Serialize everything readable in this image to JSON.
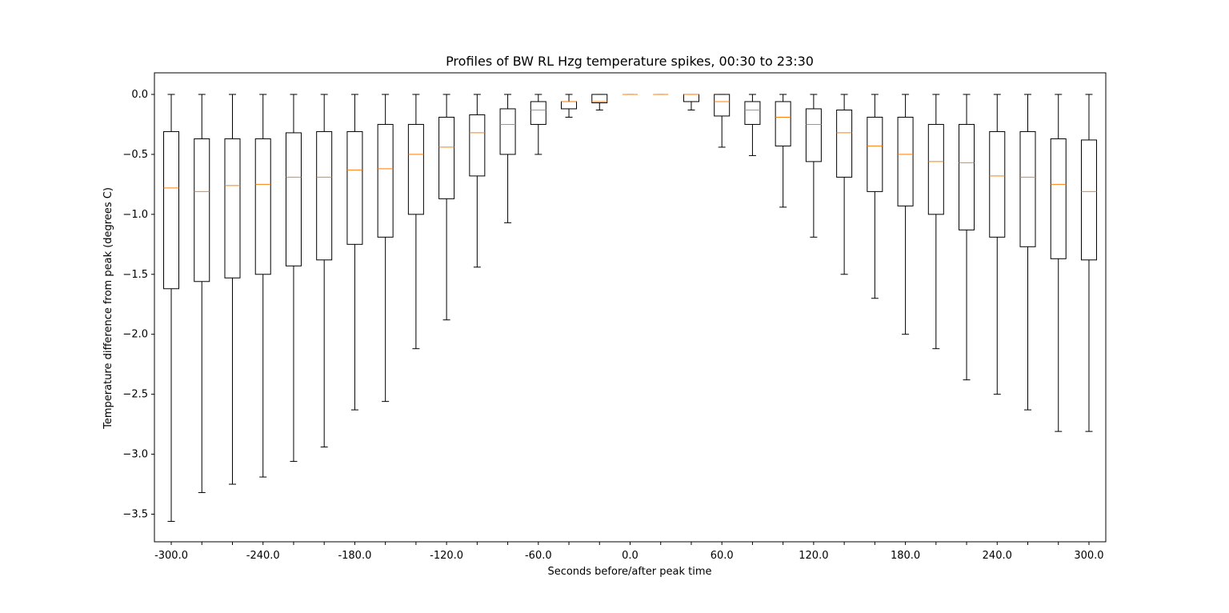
{
  "chart_data": {
    "type": "boxplot",
    "title": "Profiles of BW RL Hzg temperature spikes, 00:30 to 23:30",
    "xlabel": "Seconds before/after peak time",
    "ylabel": "Temperature difference from peak (degrees C)",
    "ylim": [
      -3.73,
      0.18
    ],
    "yticks": [
      0.0,
      -0.5,
      -1.0,
      -1.5,
      -2.0,
      -2.5,
      -3.0,
      -3.5
    ],
    "ytick_labels": [
      "0.0",
      "−0.5",
      "−1.0",
      "−1.5",
      "−2.0",
      "−2.5",
      "−3.0",
      "−3.5"
    ],
    "xtick_labels": [
      "-300.0",
      "-240.0",
      "-180.0",
      "-120.0",
      "-60.0",
      "0.0",
      "60.0",
      "120.0",
      "180.0",
      "240.0",
      "300.0"
    ],
    "x": [
      -300,
      -280,
      -260,
      -240,
      -220,
      -200,
      -180,
      -160,
      -140,
      -120,
      -100,
      -80,
      -60,
      -40,
      -20,
      0,
      20,
      40,
      60,
      80,
      100,
      120,
      140,
      160,
      180,
      200,
      220,
      240,
      260,
      280,
      300
    ],
    "boxes": [
      {
        "whislo": -3.56,
        "q1": -1.62,
        "med": -0.78,
        "q3": -0.31,
        "whishi": 0.0
      },
      {
        "whislo": -3.32,
        "q1": -1.56,
        "med": -0.81,
        "q3": -0.37,
        "whishi": 0.0
      },
      {
        "whislo": -3.25,
        "q1": -1.53,
        "med": -0.76,
        "q3": -0.37,
        "whishi": 0.0
      },
      {
        "whislo": -3.19,
        "q1": -1.5,
        "med": -0.75,
        "q3": -0.37,
        "whishi": 0.0
      },
      {
        "whislo": -3.06,
        "q1": -1.43,
        "med": -0.69,
        "q3": -0.32,
        "whishi": 0.0
      },
      {
        "whislo": -2.94,
        "q1": -1.38,
        "med": -0.69,
        "q3": -0.31,
        "whishi": 0.0
      },
      {
        "whislo": -2.63,
        "q1": -1.25,
        "med": -0.63,
        "q3": -0.31,
        "whishi": 0.0
      },
      {
        "whislo": -2.56,
        "q1": -1.19,
        "med": -0.62,
        "q3": -0.25,
        "whishi": 0.0
      },
      {
        "whislo": -2.12,
        "q1": -1.0,
        "med": -0.5,
        "q3": -0.25,
        "whishi": 0.0
      },
      {
        "whislo": -1.88,
        "q1": -0.87,
        "med": -0.44,
        "q3": -0.19,
        "whishi": 0.0
      },
      {
        "whislo": -1.44,
        "q1": -0.68,
        "med": -0.32,
        "q3": -0.17,
        "whishi": 0.0
      },
      {
        "whislo": -1.07,
        "q1": -0.5,
        "med": -0.25,
        "q3": -0.12,
        "whishi": 0.0
      },
      {
        "whislo": -0.5,
        "q1": -0.25,
        "med": -0.13,
        "q3": -0.06,
        "whishi": 0.0
      },
      {
        "whislo": -0.19,
        "q1": -0.12,
        "med": -0.06,
        "q3": -0.06,
        "whishi": 0.0
      },
      {
        "whislo": -0.13,
        "q1": -0.07,
        "med": -0.06,
        "q3": 0.0,
        "whishi": 0.0
      },
      {
        "whislo": 0.0,
        "q1": 0.0,
        "med": 0.0,
        "q3": 0.0,
        "whishi": 0.0
      },
      {
        "whislo": 0.0,
        "q1": 0.0,
        "med": 0.0,
        "q3": 0.0,
        "whishi": 0.0
      },
      {
        "whislo": -0.13,
        "q1": -0.06,
        "med": 0.0,
        "q3": 0.0,
        "whishi": 0.0
      },
      {
        "whislo": -0.44,
        "q1": -0.18,
        "med": -0.06,
        "q3": 0.0,
        "whishi": 0.0
      },
      {
        "whislo": -0.51,
        "q1": -0.25,
        "med": -0.13,
        "q3": -0.06,
        "whishi": 0.0
      },
      {
        "whislo": -0.94,
        "q1": -0.43,
        "med": -0.19,
        "q3": -0.06,
        "whishi": 0.0
      },
      {
        "whislo": -1.19,
        "q1": -0.56,
        "med": -0.25,
        "q3": -0.12,
        "whishi": 0.0
      },
      {
        "whislo": -1.5,
        "q1": -0.69,
        "med": -0.32,
        "q3": -0.13,
        "whishi": 0.0
      },
      {
        "whislo": -1.7,
        "q1": -0.81,
        "med": -0.43,
        "q3": -0.19,
        "whishi": 0.0
      },
      {
        "whislo": -2.0,
        "q1": -0.93,
        "med": -0.5,
        "q3": -0.19,
        "whishi": 0.0
      },
      {
        "whislo": -2.12,
        "q1": -1.0,
        "med": -0.56,
        "q3": -0.25,
        "whishi": 0.0
      },
      {
        "whislo": -2.38,
        "q1": -1.13,
        "med": -0.57,
        "q3": -0.25,
        "whishi": 0.0
      },
      {
        "whislo": -2.5,
        "q1": -1.19,
        "med": -0.68,
        "q3": -0.31,
        "whishi": 0.0
      },
      {
        "whislo": -2.63,
        "q1": -1.27,
        "med": -0.69,
        "q3": -0.31,
        "whishi": 0.0
      },
      {
        "whislo": -2.81,
        "q1": -1.37,
        "med": -0.75,
        "q3": -0.37,
        "whishi": 0.0
      },
      {
        "whislo": -2.81,
        "q1": -1.38,
        "med": -0.81,
        "q3": -0.38,
        "whishi": 0.0
      }
    ],
    "colors": {
      "box": "#000000",
      "median": "#ff7f0e",
      "axes": "#000000"
    },
    "grid": false,
    "legend": "none"
  }
}
